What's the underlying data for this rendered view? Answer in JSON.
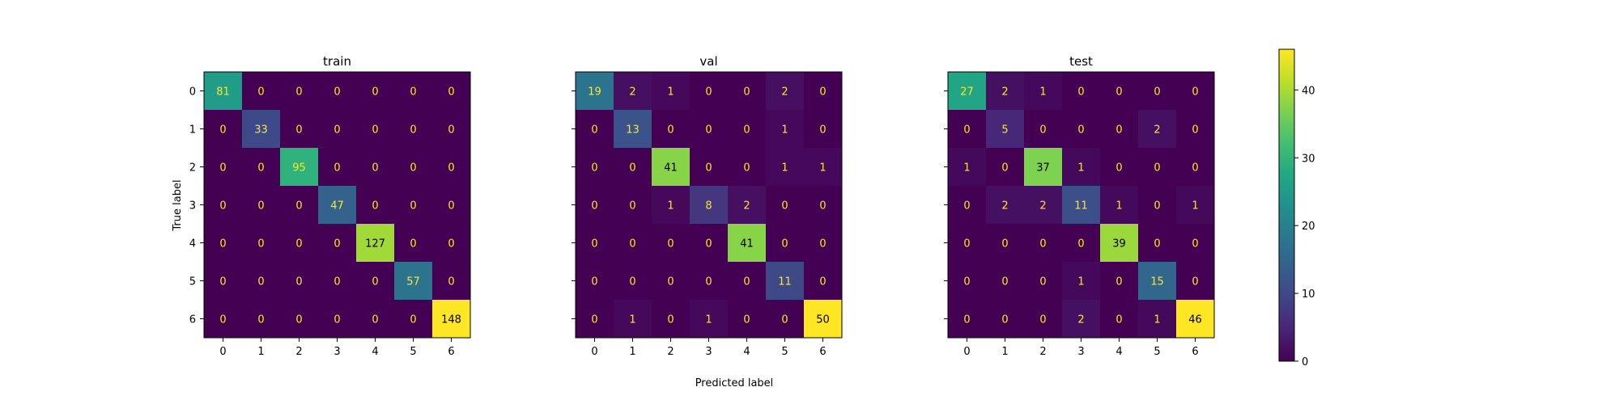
{
  "chart_data": {
    "type": "heatmap",
    "colormap": "viridis",
    "xlabel": "Predicted label",
    "ylabel": "True label",
    "labels": [
      "0",
      "1",
      "2",
      "3",
      "4",
      "5",
      "6"
    ],
    "colorbar": {
      "range": [
        0,
        46
      ],
      "ticks": [
        0,
        10,
        20,
        30,
        40
      ]
    },
    "text_colors": {
      "dark_cell": "#fde725",
      "bright_cell": "#000000"
    },
    "panels": [
      {
        "title": "train",
        "matrix": [
          [
            81,
            0,
            0,
            0,
            0,
            0,
            0
          ],
          [
            0,
            33,
            0,
            0,
            0,
            0,
            0
          ],
          [
            0,
            0,
            95,
            0,
            0,
            0,
            0
          ],
          [
            0,
            0,
            0,
            47,
            0,
            0,
            0
          ],
          [
            0,
            0,
            0,
            0,
            127,
            0,
            0
          ],
          [
            0,
            0,
            0,
            0,
            0,
            57,
            0
          ],
          [
            0,
            0,
            0,
            0,
            0,
            0,
            148
          ]
        ]
      },
      {
        "title": "val",
        "matrix": [
          [
            19,
            2,
            1,
            0,
            0,
            2,
            0
          ],
          [
            0,
            13,
            0,
            0,
            0,
            1,
            0
          ],
          [
            0,
            0,
            41,
            0,
            0,
            1,
            1
          ],
          [
            0,
            0,
            1,
            8,
            2,
            0,
            0
          ],
          [
            0,
            0,
            0,
            0,
            41,
            0,
            0
          ],
          [
            0,
            0,
            0,
            0,
            0,
            11,
            0
          ],
          [
            0,
            1,
            0,
            1,
            0,
            0,
            50
          ]
        ]
      },
      {
        "title": "test",
        "matrix": [
          [
            27,
            2,
            1,
            0,
            0,
            0,
            0
          ],
          [
            0,
            5,
            0,
            0,
            0,
            2,
            0
          ],
          [
            1,
            0,
            37,
            1,
            0,
            0,
            0
          ],
          [
            0,
            2,
            2,
            11,
            1,
            0,
            1
          ],
          [
            0,
            0,
            0,
            0,
            39,
            0,
            0
          ],
          [
            0,
            0,
            0,
            1,
            0,
            15,
            0
          ],
          [
            0,
            0,
            0,
            2,
            0,
            1,
            46
          ]
        ]
      }
    ]
  }
}
